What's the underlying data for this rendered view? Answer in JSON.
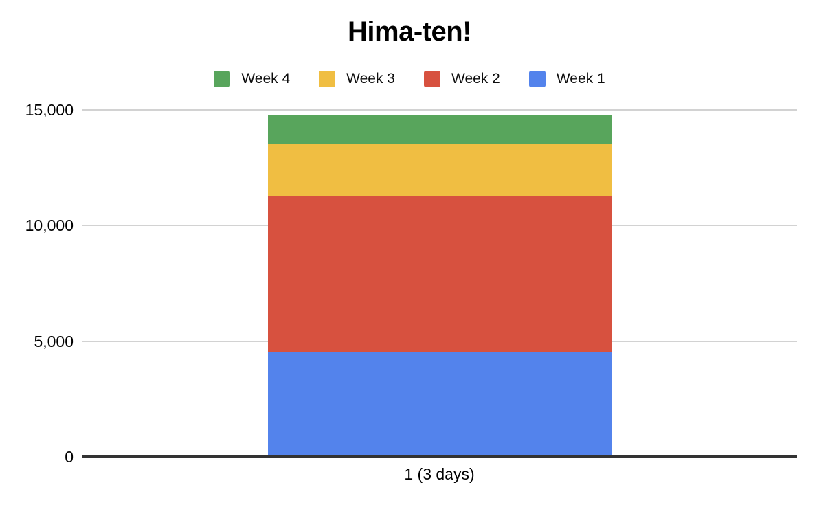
{
  "chart_data": {
    "type": "bar",
    "stacked": true,
    "title": "Hima-ten!",
    "categories": [
      "1 (3 days)"
    ],
    "series": [
      {
        "name": "Week 1",
        "color": "#5383EC",
        "values": [
          4545
        ]
      },
      {
        "name": "Week 2",
        "color": "#D7513F",
        "values": [
          6715
        ]
      },
      {
        "name": "Week 3",
        "color": "#F0BE42",
        "values": [
          2255
        ]
      },
      {
        "name": "Week 4",
        "color": "#58A55C",
        "values": [
          1250
        ]
      }
    ],
    "stack_total": 14765,
    "legend_order": [
      "Week 4",
      "Week 3",
      "Week 2",
      "Week 1"
    ],
    "legend_position": "top",
    "xlabel": "",
    "ylabel": "",
    "ylim": [
      0,
      15000
    ],
    "yticks": [
      0,
      5000,
      10000,
      15000
    ],
    "ytick_labels": [
      "0",
      "5,000",
      "10,000",
      "15,000"
    ],
    "grid": "horizontal",
    "colors": {
      "background": "#FFFFFF",
      "gridline": "#D2D2D2",
      "axis_line": "#333333",
      "text": "#000000"
    }
  }
}
